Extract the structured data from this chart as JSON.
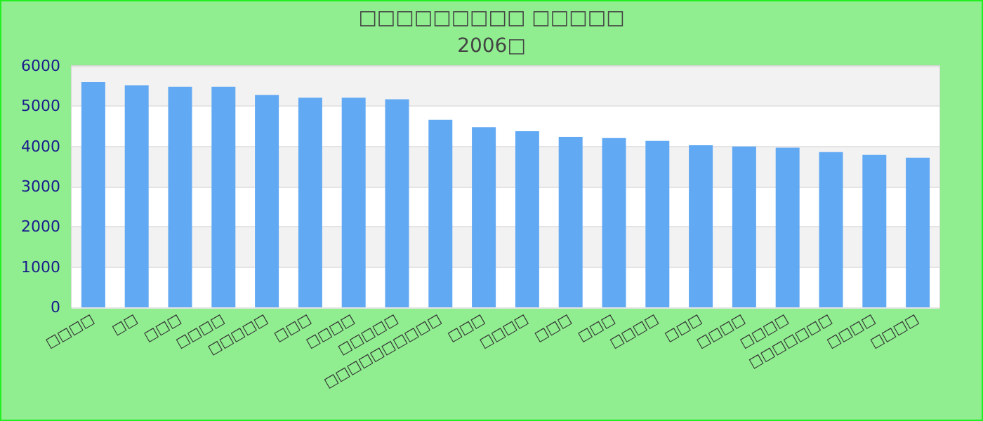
{
  "chart_data": {
    "type": "bar",
    "title": "□□□□□□□□□ □□□□□",
    "subtitle": "2006□",
    "categories": [
      "□□□□",
      "□□",
      "□□□",
      "□□□□",
      "□□□□□",
      "□□□",
      "□□□□",
      "□□□□□",
      "□□□□□□□□□□",
      "□□□",
      "□□□□",
      "□□□",
      "□□□",
      "□□□□",
      "□□□",
      "□□□□",
      "□□□□",
      "□□□□□□□",
      "□□□□",
      "□□□□"
    ],
    "values": [
      5600,
      5520,
      5480,
      5480,
      5280,
      5210,
      5210,
      5170,
      4660,
      4480,
      4380,
      4240,
      4210,
      4140,
      4030,
      4000,
      3970,
      3860,
      3790,
      3720
    ],
    "color": "#62a9f3",
    "ylim": [
      0,
      6000
    ],
    "yticks": [
      0,
      1000,
      2000,
      3000,
      4000,
      5000,
      6000
    ],
    "grid": "y"
  }
}
